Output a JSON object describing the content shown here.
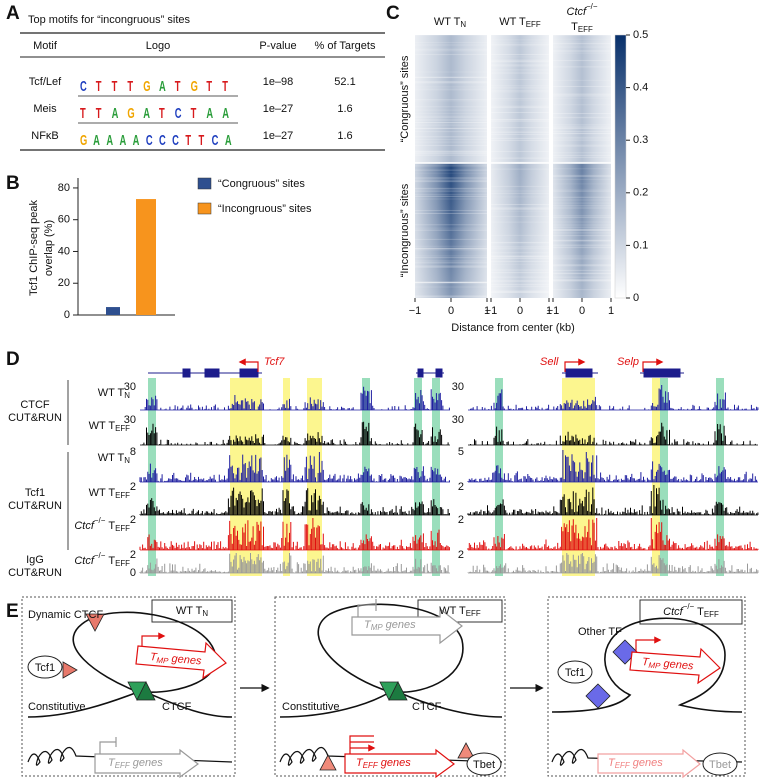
{
  "panel_labels": [
    "A",
    "B",
    "C",
    "D",
    "E"
  ],
  "panel_a": {
    "title": "Top motifs for “incongruous” sites",
    "columns": [
      "Motif",
      "Logo",
      "P-value",
      "% of Targets"
    ],
    "rows": [
      {
        "motif": "Tcf/Lef",
        "logo": "CTTTGATGTT",
        "p_value": "1e–98",
        "targets": 52.1
      },
      {
        "motif": "Meis",
        "logo": "TTAGATCTAA",
        "p_value": "1e–27",
        "targets": 1.6
      },
      {
        "motif": "NFκB",
        "logo": "GAAAACCCTTCA",
        "p_value": "1e–27",
        "targets": 1.6
      }
    ]
  },
  "chart_data": [
    {
      "type": "bar",
      "ylabel": [
        "Tcf1 ChIP-seq peak",
        "overlap (%)"
      ],
      "series": [
        {
          "name": "“Congruous” sites",
          "color": "#2e4f8f",
          "values": [
            5
          ]
        },
        {
          "name": "“Incongruous” sites",
          "color": "#f7941d",
          "values": [
            73
          ]
        }
      ],
      "ylim": [
        0,
        85
      ],
      "yticks": [
        0,
        20,
        40,
        60,
        80
      ]
    },
    {
      "type": "heatmap",
      "columns": [
        {
          "text": "WT T",
          "sub": "N"
        },
        {
          "text": "WT T",
          "sub": "EFF"
        },
        {
          "italic": "Ctcf",
          "sup": "−/−",
          "text": "T",
          "sub": "EFF"
        }
      ],
      "row_groups": [
        "“Congruous” sites",
        "“Incongruous” sites"
      ],
      "xlabel": "Distance from center (kb)",
      "xlim": [
        -1,
        1
      ],
      "xticks": [
        {
          "value": -1,
          "label": "−1"
        },
        0,
        1
      ],
      "colorbar_lim": [
        0,
        0.5
      ],
      "colorbar_ticks": [
        0,
        0.1,
        0.2,
        0.3,
        0.4,
        0.5
      ],
      "color": "#08306b"
    }
  ],
  "panel_d": {
    "genes": [
      "Tcf7",
      "Sell",
      "Selp"
    ],
    "groups": [
      [
        "CTCF",
        "CUT&RUN"
      ],
      [
        "Tcf1",
        "CUT&RUN"
      ],
      [
        "IgG",
        "CUT&RUN"
      ]
    ],
    "tracks": [
      {
        "sample": {
          "text": "WT T",
          "sub": "N"
        },
        "scale": [
          30,
          30
        ],
        "color": "#1f1fa0"
      },
      {
        "sample": {
          "text": "WT T",
          "sub": "EFF"
        },
        "scale": [
          30,
          30
        ],
        "color": "#000000"
      },
      {
        "sample": {
          "text": "WT T",
          "sub": "N"
        },
        "scale": [
          8,
          5
        ],
        "color": "#1f1fa0"
      },
      {
        "sample": {
          "text": "WT T",
          "sub": "EFF"
        },
        "scale": [
          2,
          2
        ],
        "color": "#000000"
      },
      {
        "sample": {
          "italic": "Ctcf",
          "sup": "−/−",
          "text": "T",
          "sub": "EFF"
        },
        "scale": [
          2,
          2
        ],
        "color": "#e01010"
      },
      {
        "sample": {
          "italic": "Ctcf",
          "sup": "−/−",
          "text": "T",
          "sub": "EFF"
        },
        "scale": [
          2,
          2
        ],
        "color": "#999999"
      }
    ],
    "axis_min": 0
  },
  "panel_e": {
    "boxes": [
      {
        "title": {
          "text": "WT T",
          "sub": "N"
        },
        "labels": [
          "Dynamic CTCF",
          "Tcf1",
          "Constitutive",
          "CTCF"
        ],
        "genes": [
          {
            "text": "T",
            "sub": "MP",
            "after": " genes"
          },
          {
            "text": "T",
            "sub": "EFF",
            "after": " genes"
          }
        ]
      },
      {
        "title": {
          "text": "WT T",
          "sub": "EFF"
        },
        "labels": [
          "Constitutive",
          "CTCF",
          "Tbet"
        ],
        "genes": [
          {
            "text": "T",
            "sub": "MP",
            "after": " genes"
          },
          {
            "text": "T",
            "sub": "EFF",
            "after": " genes"
          }
        ]
      },
      {
        "title": {
          "italic": "Ctcf",
          "sup": "−/−",
          "text": "T",
          "sub": "EFF"
        },
        "labels": [
          "Other TF",
          "Tcf1",
          "Tbet"
        ],
        "genes": [
          {
            "text": "T",
            "sub": "MP",
            "after": " genes"
          },
          {
            "text": "T",
            "sub": "EFF",
            "after": " genes"
          }
        ]
      }
    ]
  }
}
